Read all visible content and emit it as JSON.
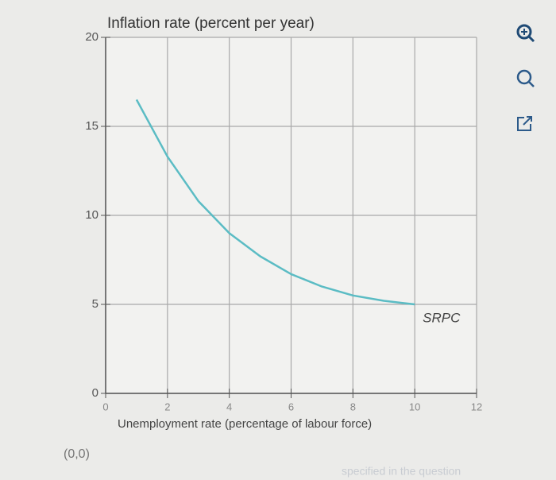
{
  "chart_data": {
    "type": "line",
    "title": "Inflation rate (percent per year)",
    "x_label": "Unemployment rate (percentage of labour force)",
    "origin_label": "(0,0)",
    "footnote": "specified in the question",
    "x": [
      1,
      2,
      3,
      4,
      5,
      6,
      7,
      8,
      9,
      10
    ],
    "series": [
      {
        "name": "SRPC",
        "color": "#5bbcc4",
        "values": [
          16.5,
          13.3,
          10.8,
          9.0,
          7.7,
          6.7,
          6.0,
          5.5,
          5.2,
          5.0
        ]
      }
    ],
    "xlim": [
      0,
      12
    ],
    "xticks": [
      0,
      2,
      4,
      6,
      8,
      10,
      12
    ],
    "ylim": [
      0,
      20
    ],
    "yticks": [
      0,
      5,
      10,
      15,
      20
    ],
    "grid": true
  }
}
